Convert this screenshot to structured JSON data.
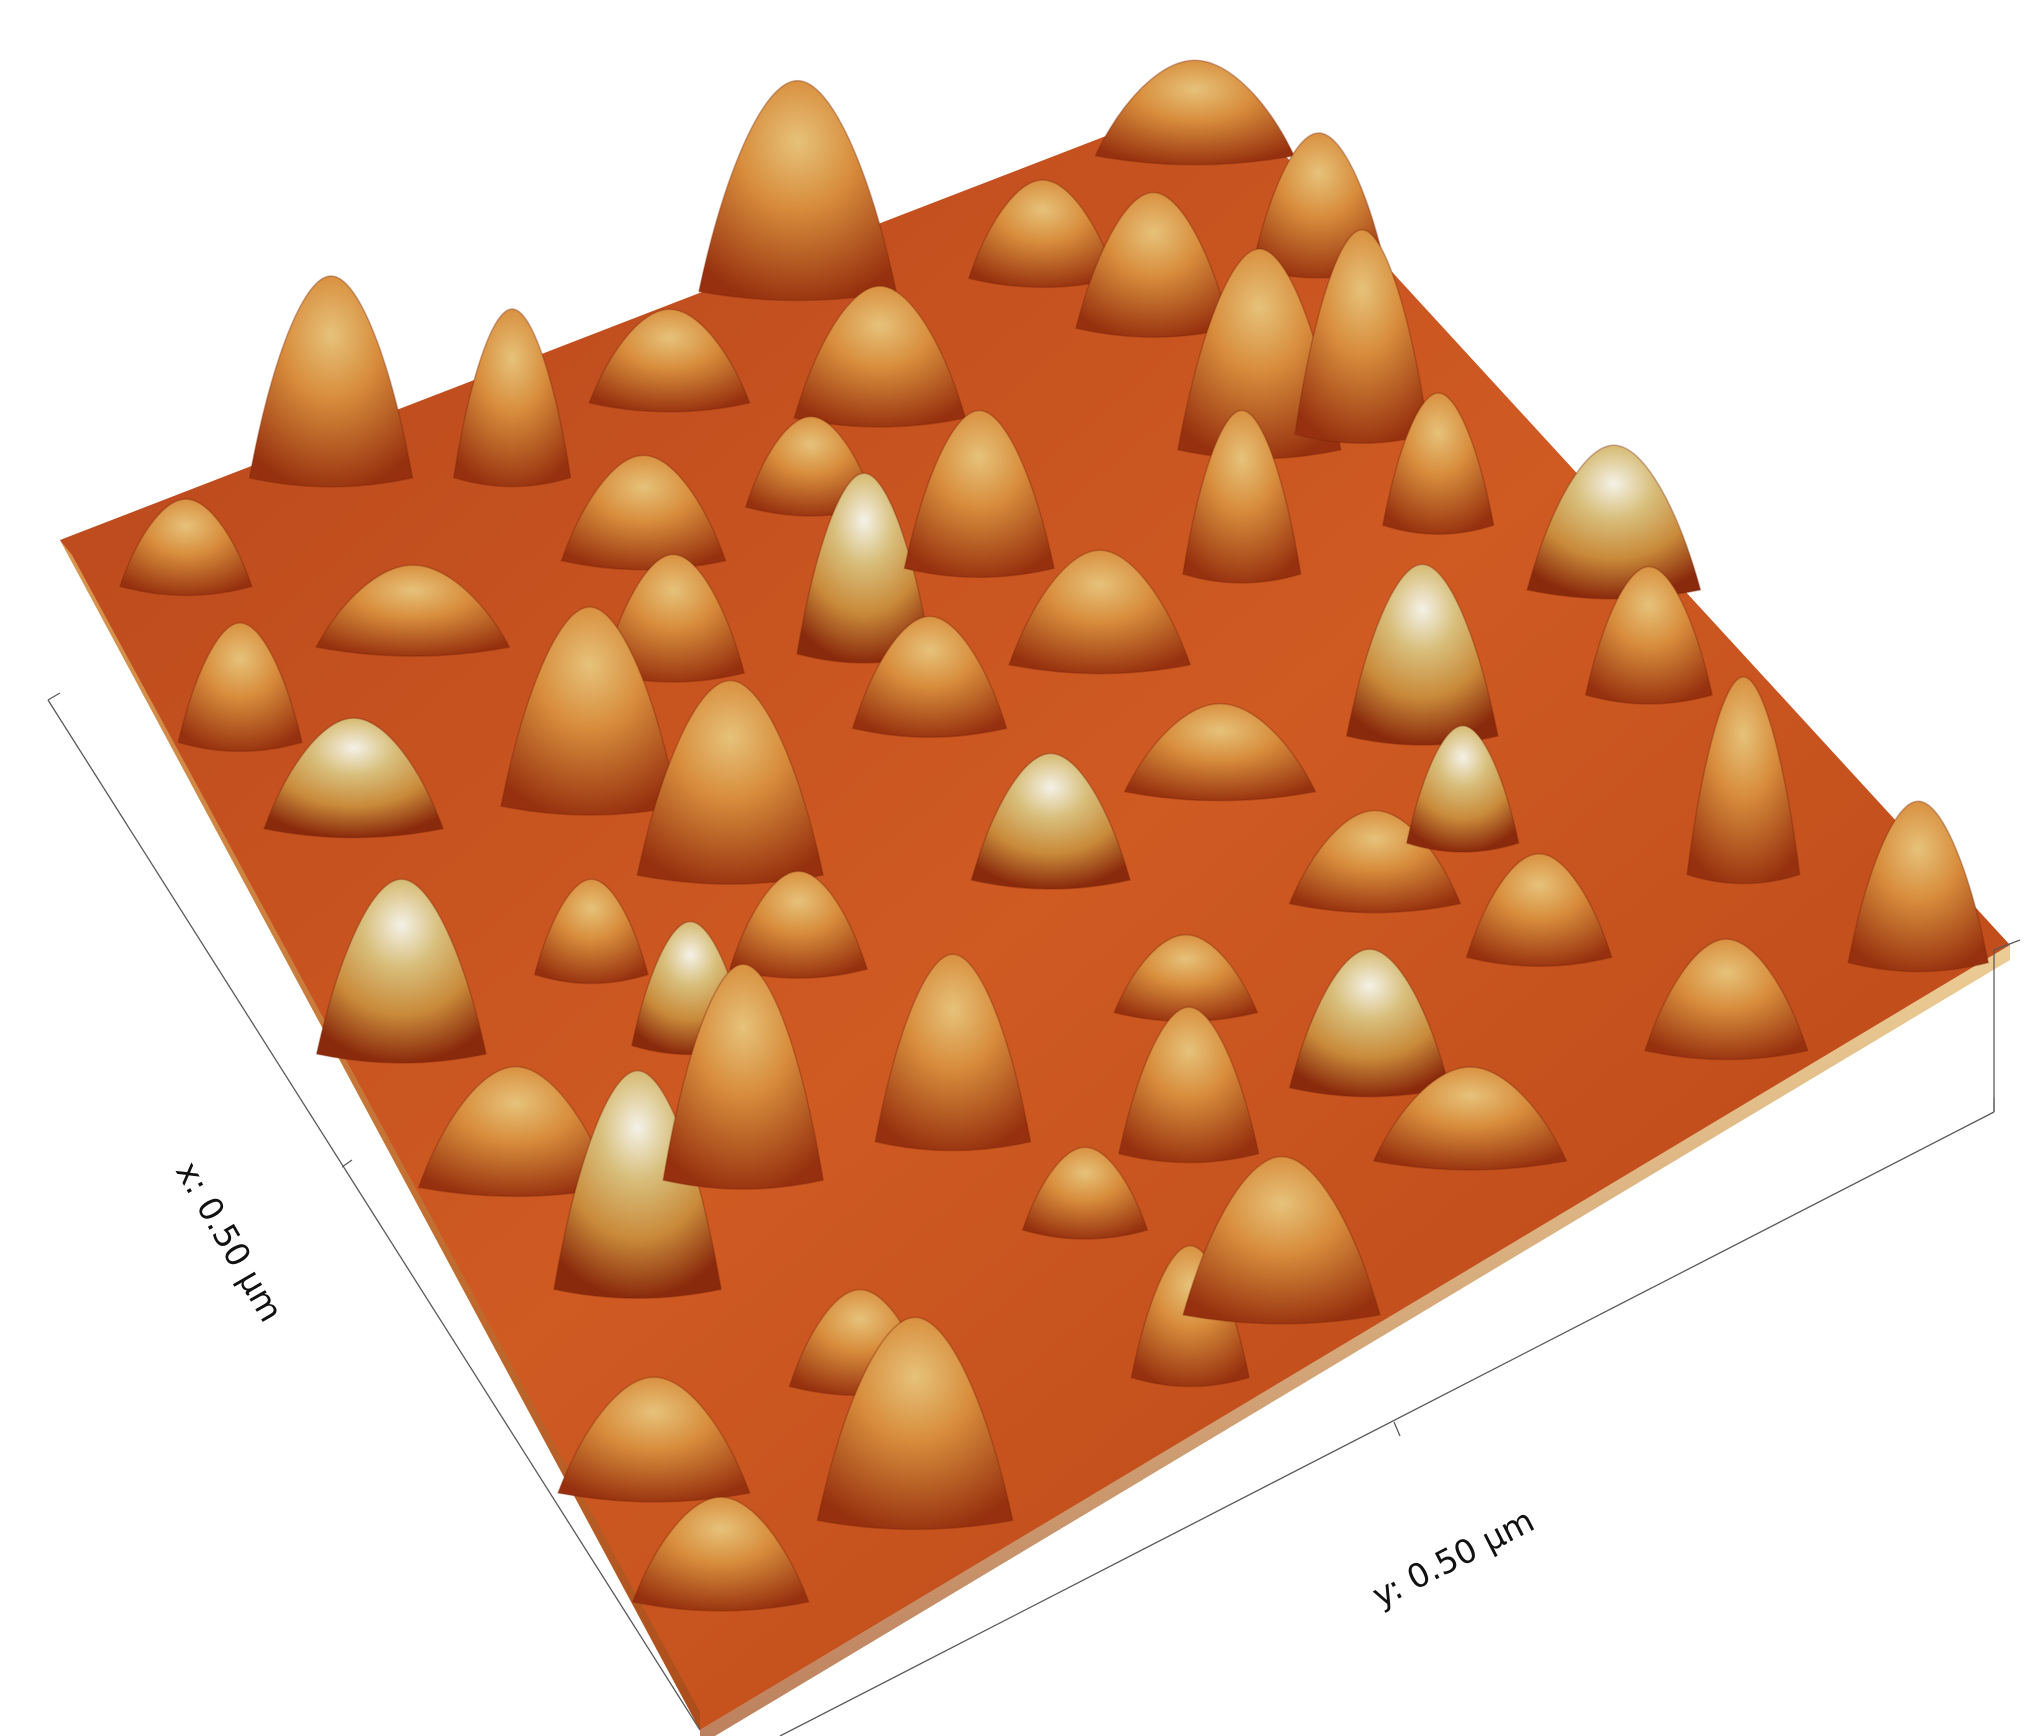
{
  "figure": {
    "x_axis_label": "x: 0.50 µm",
    "y_axis_label": "y: 0.50 µm",
    "colormap": [
      "#7a1e08",
      "#c8401a",
      "#e9782e",
      "#d9a24e",
      "#c9b67a",
      "#f3f0e6"
    ]
  }
}
